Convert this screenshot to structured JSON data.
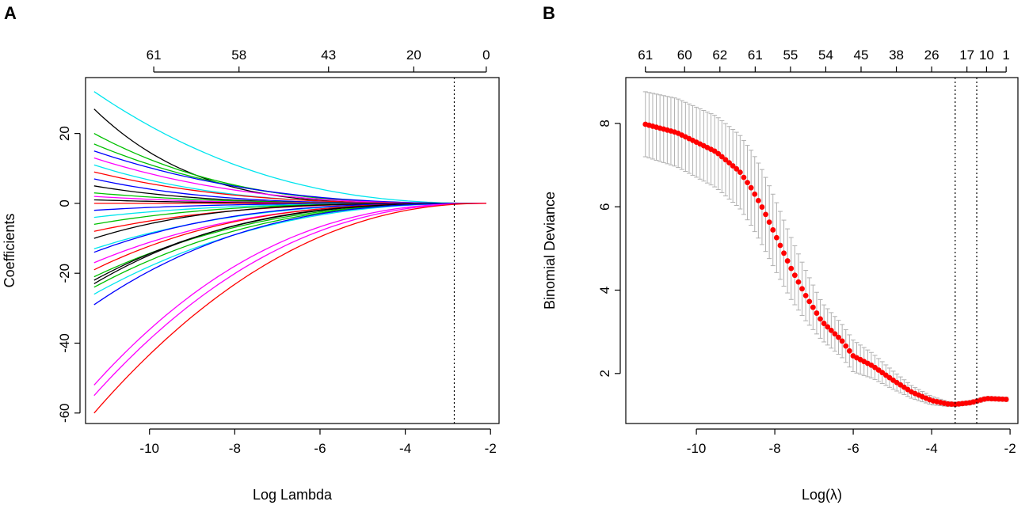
{
  "panels": [
    {
      "letter": "A"
    },
    {
      "letter": "B"
    }
  ],
  "chart_data": [
    {
      "type": "line",
      "panel": "A",
      "title": "",
      "xlabel": "Log Lambda",
      "ylabel": "Coefficients",
      "xlim": [
        -11.5,
        -1.8
      ],
      "ylim": [
        -63,
        36
      ],
      "xticks": [
        -10,
        -8,
        -6,
        -4,
        -2
      ],
      "yticks": [
        20,
        0,
        -20,
        -40,
        -60
      ],
      "top_axis": {
        "ticks": [
          {
            "x": -9.9,
            "label": "61"
          },
          {
            "x": -7.9,
            "label": "58"
          },
          {
            "x": -5.8,
            "label": "43"
          },
          {
            "x": -3.8,
            "label": "20"
          },
          {
            "x": -2.1,
            "label": "0"
          }
        ]
      },
      "vlines": [
        -2.85
      ],
      "x_start": -11.3,
      "x_end": -2.1,
      "series_colors": [
        "#000000",
        "#ff0000",
        "#00c000",
        "#0000ff",
        "#00e0e0",
        "#ff00ff"
      ],
      "series": [
        {
          "name": "s1",
          "color": "#00e5ee",
          "start": 32,
          "k": 0.55
        },
        {
          "name": "s2",
          "color": "#000000",
          "start": 27,
          "k": 1.2
        },
        {
          "name": "s3",
          "color": "#00c000",
          "start": 20,
          "k": 0.8
        },
        {
          "name": "s4",
          "color": "#00c000",
          "start": 17,
          "k": 0.7
        },
        {
          "name": "s5",
          "color": "#0000ff",
          "start": 15,
          "k": 0.6
        },
        {
          "name": "s6",
          "color": "#ff00ff",
          "start": 13,
          "k": 0.7
        },
        {
          "name": "s7",
          "color": "#00e5ee",
          "start": 11,
          "k": 0.9
        },
        {
          "name": "s8",
          "color": "#ff0000",
          "start": 9,
          "k": 0.8
        },
        {
          "name": "s9",
          "color": "#0000ff",
          "start": 7,
          "k": 1.0
        },
        {
          "name": "s10",
          "color": "#000000",
          "start": 5,
          "k": 1.1
        },
        {
          "name": "s11",
          "color": "#00c000",
          "start": 3,
          "k": 0.9
        },
        {
          "name": "s12",
          "color": "#ff00ff",
          "start": 2,
          "k": 1.0
        },
        {
          "name": "s13",
          "color": "#000000",
          "start": 1,
          "k": 1.0
        },
        {
          "name": "s14",
          "color": "#ff0000",
          "start": 0,
          "k": 1.0
        },
        {
          "name": "s15",
          "color": "#0000ff",
          "start": -2,
          "k": 1.0
        },
        {
          "name": "s16",
          "color": "#00e5ee",
          "start": -4,
          "k": 0.9
        },
        {
          "name": "s17",
          "color": "#00c000",
          "start": -6,
          "k": 0.9
        },
        {
          "name": "s18",
          "color": "#ff0000",
          "start": -8,
          "k": 0.8
        },
        {
          "name": "s19",
          "color": "#000000",
          "start": -10,
          "k": 1.0
        },
        {
          "name": "s20",
          "color": "#00e5ee",
          "start": -13,
          "k": 0.7
        },
        {
          "name": "s21",
          "color": "#0000ff",
          "start": -14,
          "k": 0.8
        },
        {
          "name": "s22",
          "color": "#ff00ff",
          "start": -17,
          "k": 0.7
        },
        {
          "name": "s23",
          "color": "#ff0000",
          "start": -19,
          "k": 0.75
        },
        {
          "name": "s24",
          "color": "#00c000",
          "start": -21,
          "k": 0.6
        },
        {
          "name": "s25",
          "color": "#000000",
          "start": -22,
          "k": 0.7
        },
        {
          "name": "s26",
          "color": "#000000",
          "start": -23,
          "k": 0.75
        },
        {
          "name": "s27",
          "color": "#00c000",
          "start": -24,
          "k": 0.6
        },
        {
          "name": "s28",
          "color": "#00e5ee",
          "start": -26,
          "k": 0.55
        },
        {
          "name": "s29",
          "color": "#0000ff",
          "start": -29,
          "k": 0.65
        },
        {
          "name": "s30",
          "color": "#ff00ff",
          "start": -52,
          "k": 0.55
        },
        {
          "name": "s31",
          "color": "#ff00ff",
          "start": -55,
          "k": 0.5
        },
        {
          "name": "s32",
          "color": "#ff0000",
          "start": -60,
          "k": 0.45
        }
      ]
    },
    {
      "type": "scatter",
      "panel": "B",
      "title": "",
      "xlabel": "Log(λ)",
      "ylabel": "Binomial Deviance",
      "xlim": [
        -11.8,
        -1.8
      ],
      "ylim": [
        0.8,
        9.1
      ],
      "xticks": [
        -10,
        -8,
        -6,
        -4,
        -2
      ],
      "yticks": [
        2,
        4,
        6,
        8
      ],
      "top_axis": {
        "ticks": [
          {
            "x": -11.3,
            "label": "61"
          },
          {
            "x": -10.3,
            "label": "60"
          },
          {
            "x": -9.4,
            "label": "62"
          },
          {
            "x": -8.5,
            "label": "61"
          },
          {
            "x": -7.6,
            "label": "55"
          },
          {
            "x": -6.7,
            "label": "54"
          },
          {
            "x": -5.8,
            "label": "45"
          },
          {
            "x": -4.9,
            "label": "38"
          },
          {
            "x": -4.0,
            "label": "26"
          },
          {
            "x": -3.1,
            "label": "17"
          },
          {
            "x": -2.6,
            "label": "10"
          },
          {
            "x": -2.1,
            "label": "1"
          }
        ]
      },
      "vlines": [
        -3.4,
        -2.85
      ],
      "point_color": "#ff0000",
      "errorbar_color": "#b0b0b0",
      "curve": [
        [
          -11.3,
          7.98,
          0.78
        ],
        [
          -10.5,
          7.78,
          0.82
        ],
        [
          -9.5,
          7.32,
          0.86
        ],
        [
          -8.9,
          6.85,
          0.88
        ],
        [
          -8.6,
          6.45,
          0.9
        ],
        [
          -8.3,
          5.95,
          0.9
        ],
        [
          -8.0,
          5.35,
          0.85
        ],
        [
          -7.6,
          4.55,
          0.75
        ],
        [
          -7.2,
          3.85,
          0.6
        ],
        [
          -6.8,
          3.25,
          0.45
        ],
        [
          -6.3,
          2.8,
          0.4
        ],
        [
          -6.0,
          2.42,
          0.38
        ],
        [
          -5.5,
          2.18,
          0.3
        ],
        [
          -5.0,
          1.85,
          0.22
        ],
        [
          -4.5,
          1.55,
          0.15
        ],
        [
          -4.0,
          1.35,
          0.1
        ],
        [
          -3.6,
          1.27,
          0.06
        ],
        [
          -3.4,
          1.26,
          0.05
        ],
        [
          -3.0,
          1.3,
          0.05
        ],
        [
          -2.6,
          1.4,
          0.05
        ],
        [
          -2.1,
          1.38,
          0.05
        ]
      ]
    }
  ]
}
